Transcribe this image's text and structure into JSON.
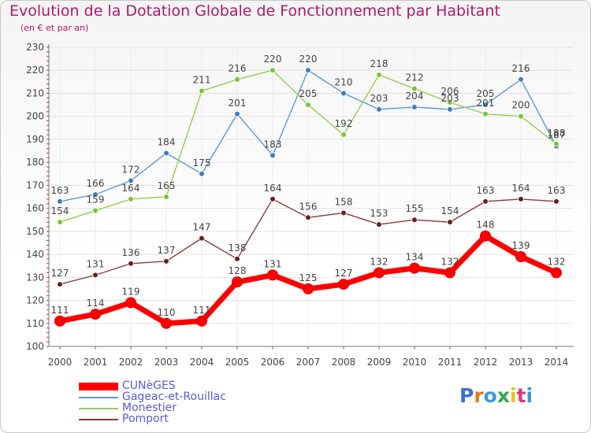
{
  "header": {
    "title": "Evolution de la Dotation Globale de Fonctionnement par Habitant",
    "subtitle": "(en € et par an)"
  },
  "brand": {
    "text": "Proxiti",
    "colors": [
      "#3a6fd8",
      "#e07a1c",
      "#3a9ad9",
      "#2fa84f",
      "#e0c51c",
      "#d93a7a",
      "#3a9ad9"
    ]
  },
  "chart_data": {
    "type": "line",
    "title": "Evolution de la Dotation Globale de Fonctionnement par Habitant",
    "subtitle": "(en € et par an)",
    "xlabel": "",
    "ylabel": "",
    "ylim": [
      100,
      230
    ],
    "yticks": [
      100,
      110,
      120,
      130,
      140,
      150,
      160,
      170,
      180,
      190,
      200,
      210,
      220,
      230
    ],
    "grid": true,
    "legend_position": "bottom-left",
    "x": [
      "2000",
      "2001",
      "2002",
      "2003",
      "2004",
      "2005",
      "2006",
      "2007",
      "2008",
      "2009",
      "2010",
      "2011",
      "2012",
      "2013",
      "2014"
    ],
    "series": [
      {
        "name": "CUNèGES",
        "color": "#ff0000",
        "marker_color": "#ff0000",
        "emphasis": true,
        "values": [
          111,
          114,
          119,
          110,
          111,
          128,
          131,
          125,
          127,
          132,
          134,
          132,
          148,
          139,
          132
        ]
      },
      {
        "name": "Gageac-et-Rouillac",
        "color": "#5b9bd5",
        "marker_color": "#3a7ec2",
        "values": [
          163,
          166,
          172,
          184,
          175,
          201,
          183,
          220,
          210,
          203,
          204,
          203,
          205,
          216,
          187
        ]
      },
      {
        "name": "Monestier",
        "color": "#92d050",
        "marker_color": "#7cc436",
        "values": [
          154,
          159,
          164,
          165,
          211,
          216,
          220,
          205,
          192,
          218,
          212,
          206,
          201,
          200,
          188
        ]
      },
      {
        "name": "Pomport",
        "color": "#8b3a3a",
        "marker_color": "#6b1f1f",
        "values": [
          127,
          131,
          136,
          137,
          147,
          138,
          164,
          156,
          158,
          153,
          155,
          154,
          163,
          164,
          163
        ]
      }
    ],
    "data_labels": {
      "CUNèGES": [
        "111",
        "114",
        "119",
        "110",
        "111",
        "128",
        "131",
        "125",
        "127",
        "132",
        "134",
        "132",
        "148",
        "139",
        "132"
      ],
      "Gageac-et-Rouillac": [
        "163",
        "166",
        "172",
        "184",
        "175",
        "201",
        "183",
        "220",
        "210",
        "203",
        "204",
        "203",
        "205",
        "216",
        "187"
      ],
      "Monestier": [
        "154",
        "159",
        "164",
        "165",
        "211",
        "216",
        "220",
        "205",
        "192",
        "218",
        "212",
        "206",
        "201",
        "200",
        "188"
      ],
      "Pomport": [
        "127",
        "131",
        "136",
        "137",
        "147",
        "138",
        "164",
        "156",
        "158",
        "153",
        "155",
        "154",
        "163",
        "164",
        "163"
      ]
    }
  }
}
